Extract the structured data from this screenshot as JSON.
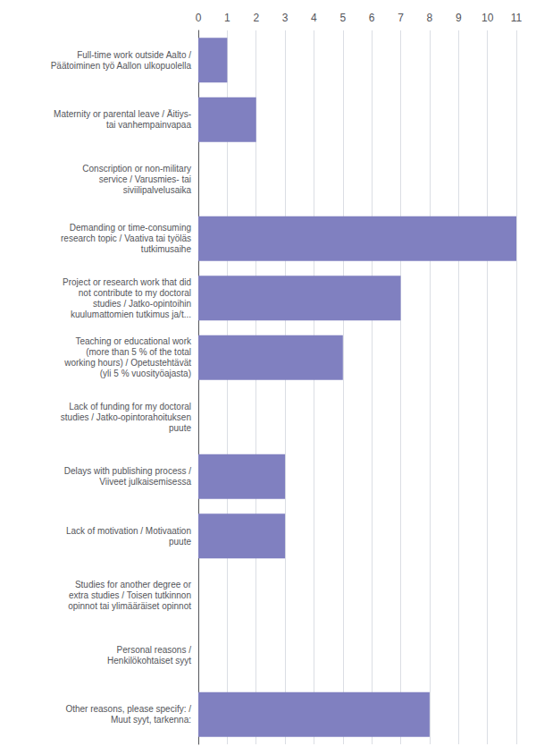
{
  "chart_data": {
    "type": "bar",
    "orientation": "horizontal",
    "categories": [
      "Full-time work outside Aalto /\nPäätoiminen työ Aallon ulkopuolella",
      "Maternity or parental leave / Äitiys-\ntai vanhempainvapaa",
      "Conscription or non-military\nservice / Varusmies- tai\nsiviilipalvelusaika",
      "Demanding or time-consuming\nresearch topic / Vaativa tai työläs\ntutkimusaihe",
      "Project or research work that did\nnot contribute to my doctoral\nstudies / Jatko-opintoihin\nkuulumattomien tutkimus ja/t...",
      "Teaching or educational work\n(more than 5 % of the total\nworking hours) / Opetustehtävät\n(yli 5 % vuosityöajasta)",
      "Lack of funding for my doctoral\nstudies / Jatko-opintorahoituksen\npuute",
      "Delays with publishing process /\nViiveet julkaisemisessa",
      "Lack of motivation / Motivaation\npuute",
      "Studies for another degree or\nextra studies / Toisen tutkinnon\nopinnot tai ylimääräiset opinnot",
      "Personal reasons /\nHenkilökohtaiset syyt",
      "Other reasons, please specify: /\nMuut syyt, tarkenna:"
    ],
    "values": [
      1,
      2,
      0,
      11,
      7,
      5,
      0,
      3,
      3,
      0,
      0,
      8
    ],
    "color": "#8080c0",
    "xlim": [
      0,
      11
    ],
    "xticks": [
      0,
      1,
      2,
      3,
      4,
      5,
      6,
      7,
      8,
      9,
      10,
      11
    ],
    "grid": true
  }
}
